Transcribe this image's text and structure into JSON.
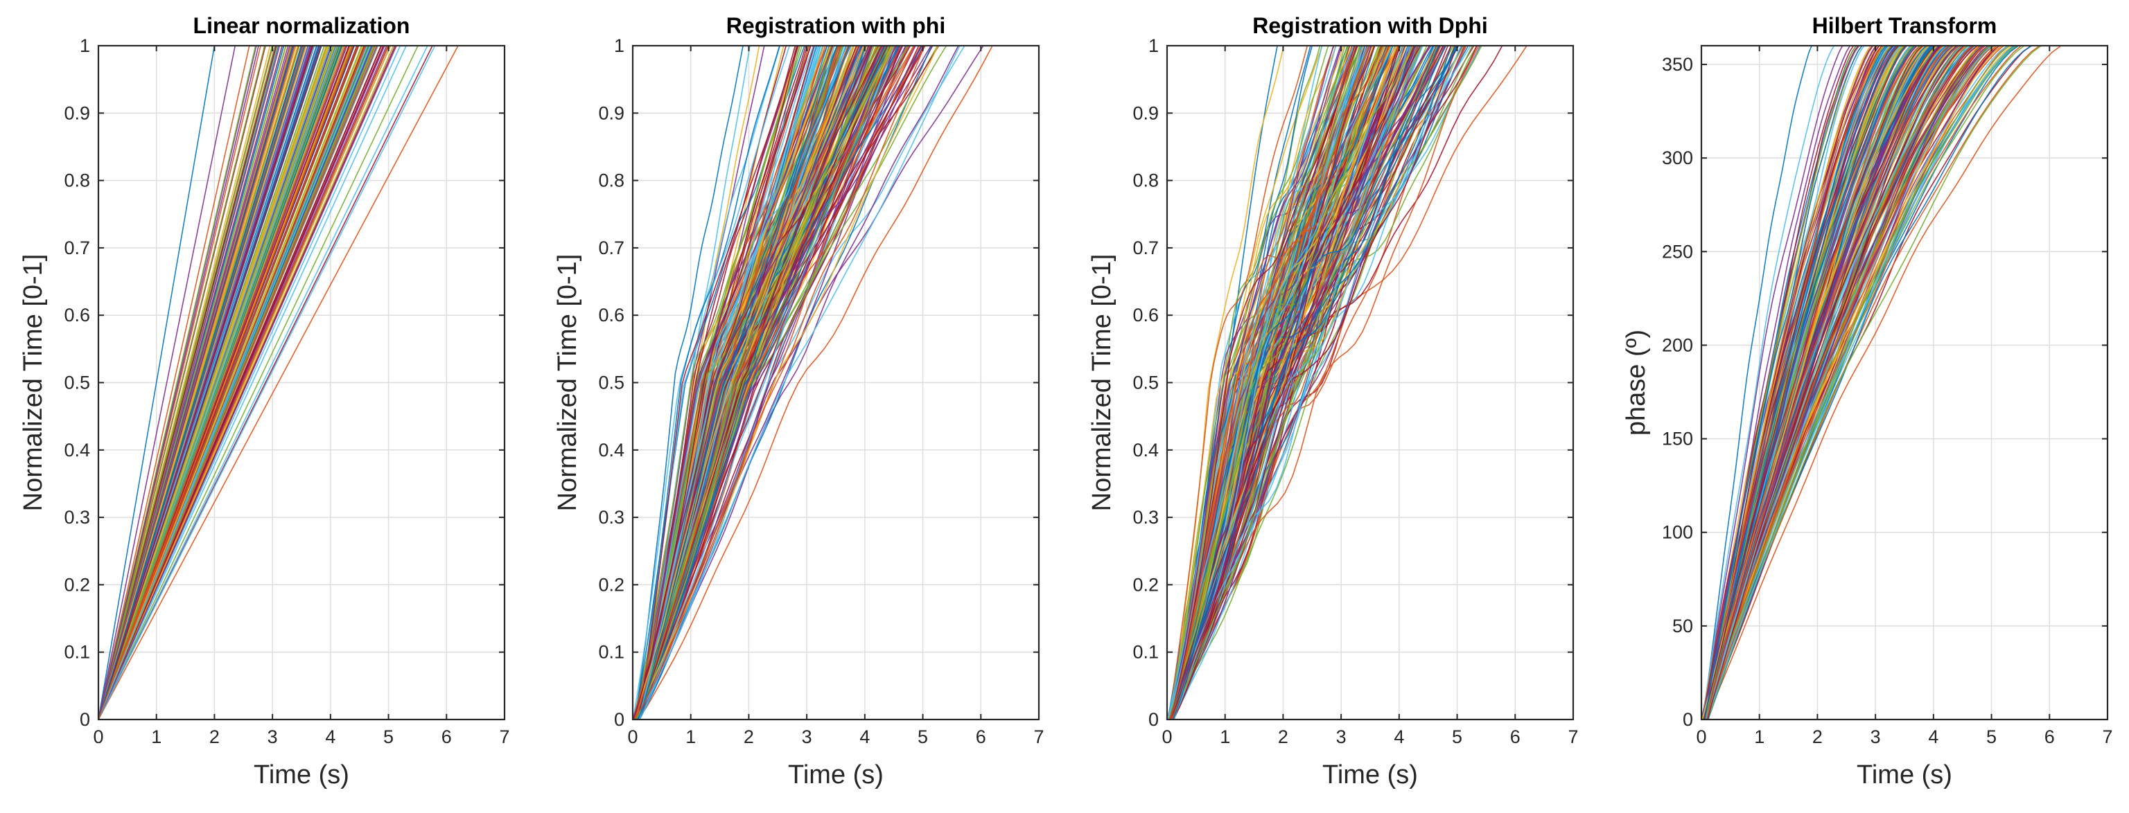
{
  "figure": {
    "panel_count": 4
  },
  "palette": [
    "#0072BD",
    "#D95319",
    "#EDB120",
    "#7E2F8E",
    "#77AC30",
    "#4DBEEE",
    "#A2142F"
  ],
  "chart_data": [
    {
      "type": "line",
      "title": "Linear normalization",
      "xlabel": "Time (s)",
      "ylabel": "Normalized Time [0-1]",
      "xlim": [
        0,
        7
      ],
      "ylim": [
        0,
        1
      ],
      "xticks": [
        0,
        1,
        2,
        3,
        4,
        5,
        6,
        7
      ],
      "yticks": [
        0,
        0.1,
        0.2,
        0.3,
        0.4,
        0.5,
        0.6,
        0.7,
        0.8,
        0.9,
        1
      ],
      "xtick_labels": [
        "0",
        "1",
        "2",
        "3",
        "4",
        "5",
        "6",
        "7"
      ],
      "ytick_labels": [
        "0",
        "0.1",
        "0.2",
        "0.3",
        "0.4",
        "0.5",
        "0.6",
        "0.7",
        "0.8",
        "0.9",
        "1"
      ],
      "grid": true,
      "curve_family": {
        "style": "linear",
        "count": 240,
        "end_time_range": [
          2.0,
          6.2
        ],
        "end_value": 1
      }
    },
    {
      "type": "line",
      "title": "Registration with phi",
      "xlabel": "Time (s)",
      "ylabel": "Normalized Time [0-1]",
      "xlim": [
        0,
        7
      ],
      "ylim": [
        0,
        1
      ],
      "xticks": [
        0,
        1,
        2,
        3,
        4,
        5,
        6,
        7
      ],
      "yticks": [
        0,
        0.1,
        0.2,
        0.3,
        0.4,
        0.5,
        0.6,
        0.7,
        0.8,
        0.9,
        1
      ],
      "xtick_labels": [
        "0",
        "1",
        "2",
        "3",
        "4",
        "5",
        "6",
        "7"
      ],
      "ytick_labels": [
        "0",
        "0.1",
        "0.2",
        "0.3",
        "0.4",
        "0.5",
        "0.6",
        "0.7",
        "0.8",
        "0.9",
        "1"
      ],
      "grid": true,
      "curve_family": {
        "style": "two-phase",
        "count": 240,
        "end_time_range": [
          1.9,
          6.2
        ],
        "end_value": 1,
        "breakpoint_value": 0.5,
        "noise": 0.02
      }
    },
    {
      "type": "line",
      "title": "Registration with Dphi",
      "xlabel": "Time (s)",
      "ylabel": "Normalized Time [0-1]",
      "xlim": [
        0,
        7
      ],
      "ylim": [
        0,
        1
      ],
      "xticks": [
        0,
        1,
        2,
        3,
        4,
        5,
        6,
        7
      ],
      "yticks": [
        0,
        0.1,
        0.2,
        0.3,
        0.4,
        0.5,
        0.6,
        0.7,
        0.8,
        0.9,
        1
      ],
      "xtick_labels": [
        "0",
        "1",
        "2",
        "3",
        "4",
        "5",
        "6",
        "7"
      ],
      "ytick_labels": [
        "0",
        "0.1",
        "0.2",
        "0.3",
        "0.4",
        "0.5",
        "0.6",
        "0.7",
        "0.8",
        "0.9",
        "1"
      ],
      "grid": true,
      "curve_family": {
        "style": "two-phase",
        "count": 240,
        "end_time_range": [
          1.9,
          6.2
        ],
        "end_value": 1,
        "breakpoint_value": 0.5,
        "noise": 0.05
      }
    },
    {
      "type": "line",
      "title": "Hilbert Transform",
      "xlabel": "Time (s)",
      "ylabel": "phase (º)",
      "xlim": [
        0,
        7
      ],
      "ylim": [
        0,
        360
      ],
      "xticks": [
        0,
        1,
        2,
        3,
        4,
        5,
        6,
        7
      ],
      "yticks": [
        0,
        50,
        100,
        150,
        200,
        250,
        300,
        350
      ],
      "xtick_labels": [
        "0",
        "1",
        "2",
        "3",
        "4",
        "5",
        "6",
        "7"
      ],
      "ytick_labels": [
        "0",
        "50",
        "100",
        "150",
        "200",
        "250",
        "300",
        "350"
      ],
      "grid": true,
      "curve_family": {
        "style": "concave",
        "count": 240,
        "end_time_range": [
          1.9,
          6.2
        ],
        "end_value": 360
      }
    }
  ]
}
